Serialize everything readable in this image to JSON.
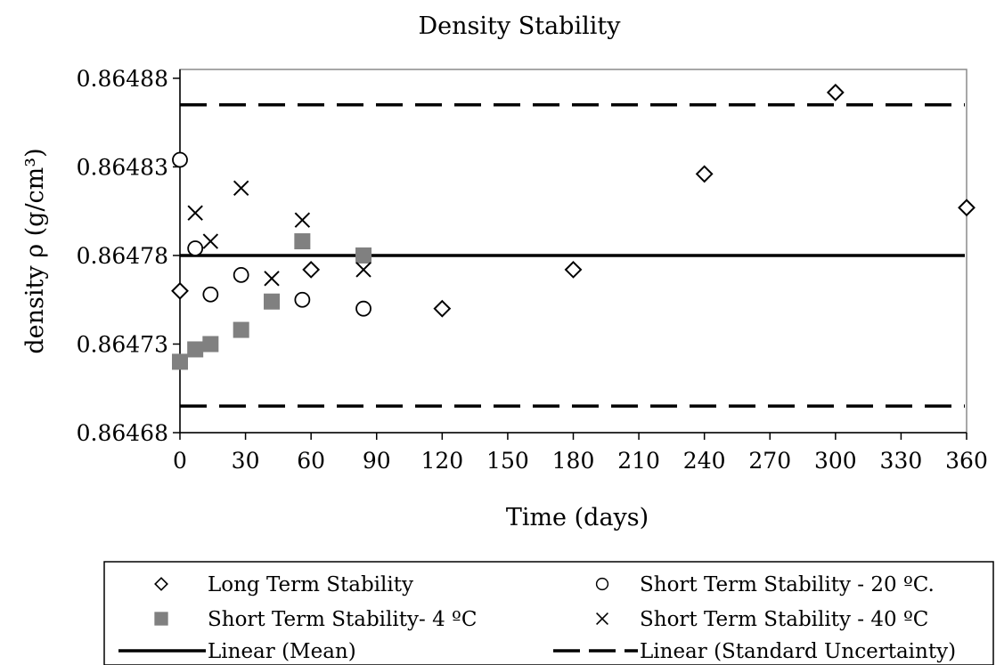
{
  "chart_data": {
    "type": "scatter",
    "title": "Density Stability",
    "xlabel": "Time (days)",
    "ylabel": "density ρ (g/cm³)",
    "xlim": [
      0,
      360
    ],
    "ylim": [
      0.86468,
      0.86488
    ],
    "x_ticks": [
      "0",
      "30",
      "60",
      "90",
      "120",
      "150",
      "180",
      "210",
      "240",
      "270",
      "300",
      "330",
      "360"
    ],
    "y_ticks": [
      "0.86468",
      "0.86473",
      "0.86478",
      "0.86483",
      "0.86488"
    ],
    "grid": false,
    "legend_position": "bottom",
    "series": [
      {
        "name": "Long Term Stability",
        "marker": "diamond-open",
        "points": [
          [
            0,
            0.86476
          ],
          [
            60,
            0.864772
          ],
          [
            120,
            0.86475
          ],
          [
            180,
            0.864772
          ],
          [
            240,
            0.864826
          ],
          [
            300,
            0.864872
          ],
          [
            360,
            0.864807
          ]
        ]
      },
      {
        "name": "Short Term Stability - 20 ºC.",
        "marker": "circle-open",
        "points": [
          [
            0,
            0.864834
          ],
          [
            7,
            0.864784
          ],
          [
            14,
            0.864758
          ],
          [
            28,
            0.864769
          ],
          [
            56,
            0.864755
          ],
          [
            84,
            0.86475
          ]
        ]
      },
      {
        "name": "Short Term Stability- 4 ºC",
        "marker": "square-filled",
        "color": "#808080",
        "points": [
          [
            0,
            0.86472
          ],
          [
            7,
            0.864727
          ],
          [
            14,
            0.86473
          ],
          [
            28,
            0.864738
          ],
          [
            42,
            0.864754
          ],
          [
            56,
            0.864788
          ],
          [
            84,
            0.86478
          ]
        ]
      },
      {
        "name": "Short Term Stability - 40 ºC",
        "marker": "x",
        "points": [
          [
            7,
            0.864804
          ],
          [
            14,
            0.864788
          ],
          [
            28,
            0.864818
          ],
          [
            42,
            0.864767
          ],
          [
            56,
            0.8648
          ],
          [
            84,
            0.864772
          ]
        ]
      }
    ],
    "lines": [
      {
        "name": "Linear (Mean)",
        "style": "solid",
        "y": 0.86478
      },
      {
        "name": "Linear (Standard Uncertainty)",
        "style": "dashed",
        "y": [
          0.864865,
          0.864695
        ]
      }
    ]
  }
}
